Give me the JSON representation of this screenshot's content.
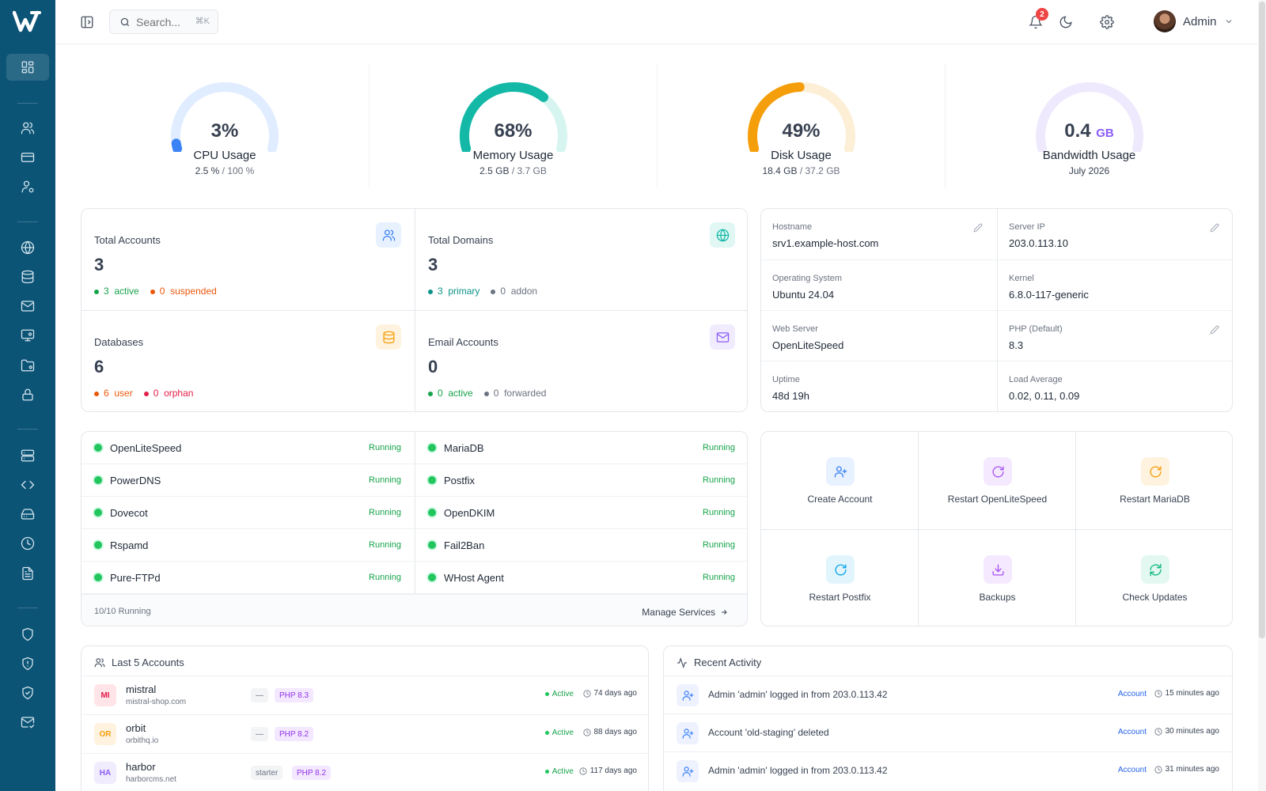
{
  "sidebar": {
    "logo": "W",
    "items": [
      {
        "icon": "dashboard-icon"
      },
      {
        "icon": "users-icon"
      },
      {
        "icon": "credit-card-icon"
      },
      {
        "icon": "user-gear-icon"
      },
      {
        "icon": "globe-icon"
      },
      {
        "icon": "database-icon"
      },
      {
        "icon": "mail-icon"
      },
      {
        "icon": "monitor-icon"
      },
      {
        "icon": "folder-icon"
      },
      {
        "icon": "lock-icon"
      },
      {
        "icon": "server-icon"
      },
      {
        "icon": "code-icon"
      },
      {
        "icon": "hard-drive-icon"
      },
      {
        "icon": "clock-icon"
      },
      {
        "icon": "file-text-icon"
      },
      {
        "icon": "shield-icon"
      },
      {
        "icon": "shield-alert-icon"
      },
      {
        "icon": "shield-check-icon"
      },
      {
        "icon": "mail-check-icon"
      }
    ]
  },
  "topbar": {
    "search_placeholder": "Search...",
    "search_shortcut": "⌘K",
    "notifications_count": "2",
    "user_name": "Admin"
  },
  "gauges": [
    {
      "value": "3%",
      "unit": "",
      "label": "CPU Usage",
      "used": "2.5 %",
      "total": "100 %",
      "percent": 3,
      "color": "#3b82f6",
      "track": "#e0ecff"
    },
    {
      "value": "68%",
      "unit": "",
      "label": "Memory Usage",
      "used": "2.5 GB",
      "total": "3.7 GB",
      "percent": 68,
      "color": "#14b8a6",
      "track": "#d7f5f0"
    },
    {
      "value": "49%",
      "unit": "",
      "label": "Disk Usage",
      "used": "18.4 GB",
      "total": "37.2 GB",
      "percent": 49,
      "color": "#f59e0b",
      "track": "#fdefd6"
    },
    {
      "value": "0.4",
      "unit": "GB",
      "label": "Bandwidth Usage",
      "used": "July 2026",
      "total": "",
      "percent": 0,
      "color": "#8b5cf6",
      "track": "#efe9fd"
    }
  ],
  "stats": [
    {
      "title": "Total Accounts",
      "value": "3",
      "icon": "users-icon",
      "icon_color": "#3b82f6",
      "icon_bg": "#e8f1ff",
      "legend": [
        {
          "count": "3",
          "label": "active",
          "color": "#16a34a"
        },
        {
          "count": "0",
          "label": "suspended",
          "color": "#ea580c"
        }
      ]
    },
    {
      "title": "Total Domains",
      "value": "3",
      "icon": "globe-icon",
      "icon_color": "#14b8a6",
      "icon_bg": "#e0f7f3",
      "legend": [
        {
          "count": "3",
          "label": "primary",
          "color": "#0d9488"
        },
        {
          "count": "0",
          "label": "addon",
          "color": "#6b7280"
        }
      ]
    },
    {
      "title": "Databases",
      "value": "6",
      "icon": "database-icon",
      "icon_color": "#f59e0b",
      "icon_bg": "#fff3df",
      "legend": [
        {
          "count": "6",
          "label": "user",
          "color": "#ea580c"
        },
        {
          "count": "0",
          "label": "orphan",
          "color": "#e11d48"
        }
      ]
    },
    {
      "title": "Email Accounts",
      "value": "0",
      "icon": "mail-icon",
      "icon_color": "#8b5cf6",
      "icon_bg": "#f1ebfe",
      "legend": [
        {
          "count": "0",
          "label": "active",
          "color": "#16a34a"
        },
        {
          "count": "0",
          "label": "forwarded",
          "color": "#6b7280"
        }
      ]
    }
  ],
  "server_info": [
    {
      "key": "Hostname",
      "value": "srv1.example-host.com",
      "editable": true
    },
    {
      "key": "Server IP",
      "value": "203.0.113.10",
      "editable": true
    },
    {
      "key": "Operating System",
      "value": "Ubuntu 24.04",
      "editable": false
    },
    {
      "key": "Kernel",
      "value": "6.8.0-117-generic",
      "editable": false
    },
    {
      "key": "Web Server",
      "value": "OpenLiteSpeed",
      "editable": false
    },
    {
      "key": "PHP (Default)",
      "value": "8.3",
      "editable": true
    },
    {
      "key": "Uptime",
      "value": "48d 19h",
      "editable": false
    },
    {
      "key": "Load Average",
      "value": "0.02, 0.11, 0.09",
      "editable": false
    }
  ],
  "services": {
    "items": [
      {
        "name": "OpenLiteSpeed",
        "status": "Running"
      },
      {
        "name": "MariaDB",
        "status": "Running"
      },
      {
        "name": "PowerDNS",
        "status": "Running"
      },
      {
        "name": "Postfix",
        "status": "Running"
      },
      {
        "name": "Dovecot",
        "status": "Running"
      },
      {
        "name": "OpenDKIM",
        "status": "Running"
      },
      {
        "name": "Rspamd",
        "status": "Running"
      },
      {
        "name": "Fail2Ban",
        "status": "Running"
      },
      {
        "name": "Pure-FTPd",
        "status": "Running"
      },
      {
        "name": "WHost Agent",
        "status": "Running"
      }
    ],
    "summary": "10/10 Running",
    "manage_label": "Manage Services"
  },
  "quick_actions": [
    {
      "label": "Create Account",
      "icon": "user-plus-icon",
      "color": "#3b82f6",
      "bg": "#e8f1ff"
    },
    {
      "label": "Restart OpenLiteSpeed",
      "icon": "refresh-icon",
      "color": "#a855f7",
      "bg": "#f5e9ff"
    },
    {
      "label": "Restart MariaDB",
      "icon": "refresh-icon",
      "color": "#f59e0b",
      "bg": "#fff2de"
    },
    {
      "label": "Restart Postfix",
      "icon": "refresh-icon",
      "color": "#0ea5e9",
      "bg": "#e2f5fd"
    },
    {
      "label": "Backups",
      "icon": "download-icon",
      "color": "#a855f7",
      "bg": "#f5e9ff"
    },
    {
      "label": "Check Updates",
      "icon": "sync-icon",
      "color": "#10b981",
      "bg": "#e3f8f0"
    }
  ],
  "accounts": {
    "title": "Last 5 Accounts",
    "rows": [
      {
        "initials": "MI",
        "name": "mistral",
        "domain": "mistral-shop.com",
        "plan": "—",
        "php": "PHP 8.3",
        "status": "Active",
        "age": "74 days ago",
        "av_color": "#e11d48",
        "av_bg": "#ffe4e8"
      },
      {
        "initials": "OR",
        "name": "orbit",
        "domain": "orbithq.io",
        "plan": "—",
        "php": "PHP 8.2",
        "status": "Active",
        "age": "88 days ago",
        "av_color": "#f59e0b",
        "av_bg": "#fff3df"
      },
      {
        "initials": "HA",
        "name": "harbor",
        "domain": "harborcms.net",
        "plan": "starter",
        "php": "PHP 8.2",
        "status": "Active",
        "age": "117 days ago",
        "av_color": "#8b5cf6",
        "av_bg": "#f1ebfe"
      }
    ]
  },
  "activity": {
    "title": "Recent Activity",
    "rows": [
      {
        "text": "Admin 'admin' logged in from 203.0.113.42",
        "tag": "Account",
        "time": "15 minutes ago"
      },
      {
        "text": "Account 'old-staging' deleted",
        "tag": "Account",
        "time": "30 minutes ago"
      },
      {
        "text": "Admin 'admin' logged in from 203.0.113.42",
        "tag": "Account",
        "time": "31 minutes ago"
      }
    ]
  }
}
